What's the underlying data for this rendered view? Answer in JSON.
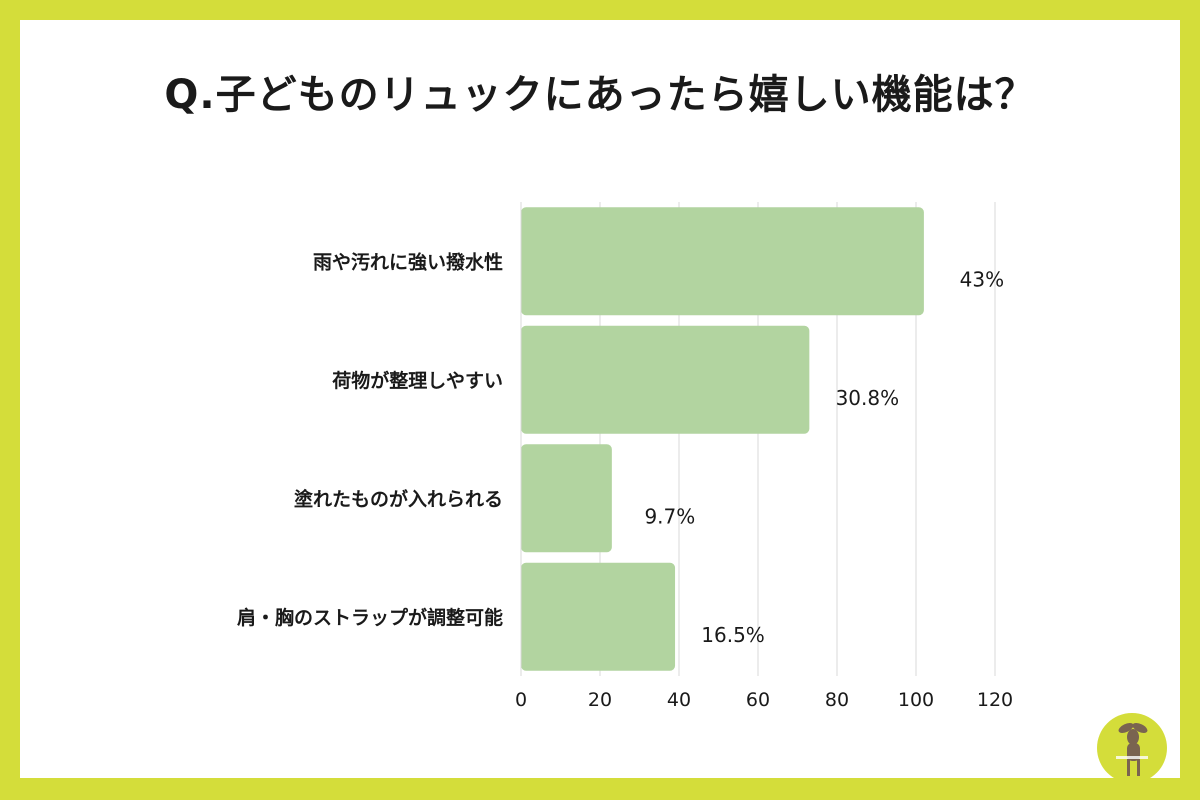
{
  "chart_data": {
    "type": "bar",
    "orientation": "horizontal",
    "title": "Q.子どものリュックにあったら嬉しい機能は？",
    "categories": [
      "雨や汚れに強い撥水性",
      "荷物が整理しやすい",
      "塗れたものが入れられる",
      "肩・胸のストラップが調整可能"
    ],
    "values": [
      102,
      73,
      23,
      39
    ],
    "value_labels": [
      "43%",
      "30.8%",
      "9.7%",
      "16.5%"
    ],
    "xlim": [
      0,
      120
    ],
    "xticks": [
      0,
      20,
      40,
      60,
      80,
      100,
      120
    ],
    "grid": true,
    "legend": "none"
  },
  "colors": {
    "bar": "#b2d4a0",
    "frame": "#d4dd3a",
    "grid": "#d9d9d9",
    "logo_circle": "#d4dd3a"
  },
  "logo": {
    "icon": "deer-icon"
  }
}
